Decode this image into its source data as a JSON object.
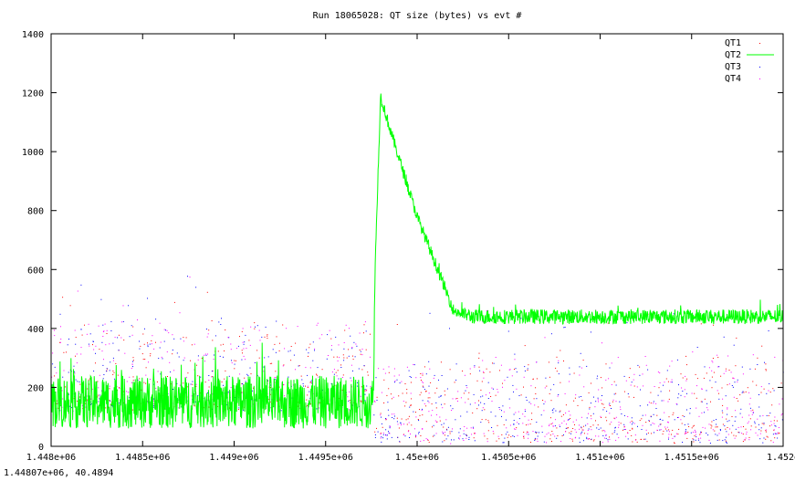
{
  "status_readout": "1.44807e+06, 40.4894",
  "chart_data": {
    "type": "scatter",
    "title": "Run 18065028: QT size (bytes) vs evt #",
    "xlabel": "",
    "ylabel": "",
    "xlim": [
      1448000,
      1452000
    ],
    "ylim": [
      0,
      1400
    ],
    "x_ticks": [
      1448000,
      1448500,
      1449000,
      1449500,
      1450000,
      1450500,
      1451000,
      1451500,
      1452000
    ],
    "x_tick_labels": [
      "1.448e+06",
      "1.4485e+06",
      "1.449e+06",
      "1.4495e+06",
      "1.45e+06",
      "1.4505e+06",
      "1.451e+06",
      "1.4515e+06",
      "1.452e"
    ],
    "y_ticks": [
      0,
      200,
      400,
      600,
      800,
      1000,
      1200,
      1400
    ],
    "y_tick_labels": [
      "0",
      "200",
      "400",
      "600",
      "800",
      "1000",
      "1200",
      "1400"
    ],
    "grid": false,
    "legend_position": "top-right",
    "series": [
      {
        "name": "QT1",
        "style": "points",
        "color": "#ff0000",
        "segments": [
          {
            "x_range": [
              1448000,
              1449760
            ],
            "baseline": 140,
            "spread": 280
          },
          {
            "x_range": [
              1449760,
              1452000
            ],
            "baseline": 30,
            "spread": 270
          }
        ]
      },
      {
        "name": "QT2",
        "style": "line",
        "color": "#00ff00",
        "envelope": [
          [
            1448000,
            150
          ],
          [
            1449000,
            150
          ],
          [
            1449760,
            150
          ],
          [
            1449770,
            600
          ],
          [
            1449800,
            1190
          ],
          [
            1449850,
            1080
          ],
          [
            1450000,
            780
          ],
          [
            1450100,
            620
          ],
          [
            1450200,
            460
          ],
          [
            1450300,
            440
          ],
          [
            1451000,
            440
          ],
          [
            1452000,
            440
          ]
        ],
        "noise": [
          [
            1448000,
            90
          ],
          [
            1449760,
            90
          ],
          [
            1449770,
            20
          ],
          [
            1450200,
            20
          ],
          [
            1450300,
            25
          ],
          [
            1452000,
            25
          ]
        ]
      },
      {
        "name": "QT3",
        "style": "points",
        "color": "#0000ff",
        "segments": [
          {
            "x_range": [
              1448000,
              1449760
            ],
            "baseline": 140,
            "spread": 280
          },
          {
            "x_range": [
              1449760,
              1452000
            ],
            "baseline": 30,
            "spread": 270
          }
        ]
      },
      {
        "name": "QT4",
        "style": "points",
        "color": "#ff00ff",
        "segments": [
          {
            "x_range": [
              1448000,
              1449760
            ],
            "baseline": 140,
            "spread": 280
          },
          {
            "x_range": [
              1449760,
              1452000
            ],
            "baseline": 30,
            "spread": 270
          }
        ]
      }
    ]
  }
}
